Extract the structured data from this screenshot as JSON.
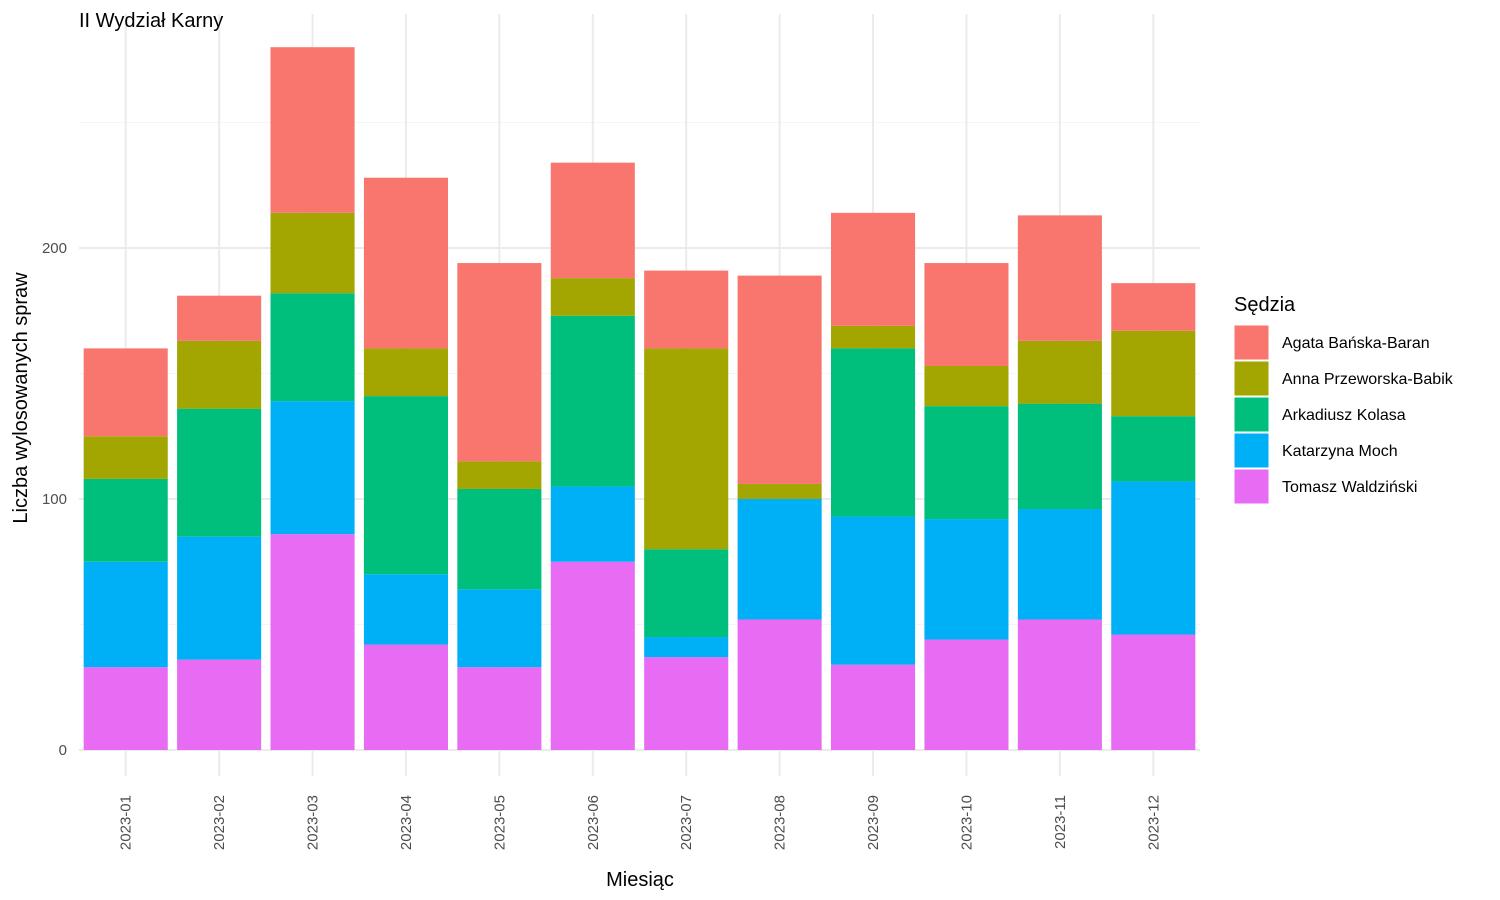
{
  "chart_data": {
    "type": "bar",
    "stacked": true,
    "title": "II Wydział Karny",
    "xlabel": "Miesiąc",
    "ylabel": "Liczba wylosowanych spraw",
    "ylim": [
      0,
      280
    ],
    "yticks": [
      0,
      100,
      200
    ],
    "grid": true,
    "legend_title": "Sędzia",
    "legend_position": "right",
    "categories": [
      "2023-01",
      "2023-02",
      "2023-03",
      "2023-04",
      "2023-05",
      "2023-06",
      "2023-07",
      "2023-08",
      "2023-09",
      "2023-10",
      "2023-11",
      "2023-12"
    ],
    "series": [
      {
        "name": "Tomasz Waldziński",
        "color": "#E76BF3",
        "values": [
          33,
          36,
          86,
          42,
          33,
          75,
          37,
          52,
          34,
          44,
          52,
          46
        ]
      },
      {
        "name": "Katarzyna Moch",
        "color": "#00B0F6",
        "values": [
          42,
          49,
          53,
          28,
          31,
          30,
          8,
          48,
          59,
          48,
          44,
          61
        ]
      },
      {
        "name": "Arkadiusz Kolasa",
        "color": "#00BF7D",
        "values": [
          33,
          51,
          43,
          71,
          40,
          68,
          35,
          0,
          67,
          45,
          42,
          26
        ]
      },
      {
        "name": "Anna Przeworska-Babik",
        "color": "#A3A500",
        "values": [
          17,
          27,
          32,
          19,
          11,
          15,
          80,
          6,
          9,
          16,
          25,
          34
        ]
      },
      {
        "name": "Agata Bańska-Baran",
        "color": "#F8766D",
        "values": [
          35,
          18,
          66,
          68,
          79,
          46,
          31,
          83,
          45,
          41,
          50,
          19
        ]
      }
    ],
    "legend_order": [
      "Agata Bańska-Baran",
      "Anna Przeworska-Babik",
      "Arkadiusz Kolasa",
      "Katarzyna Moch",
      "Tomasz Waldziński"
    ]
  }
}
